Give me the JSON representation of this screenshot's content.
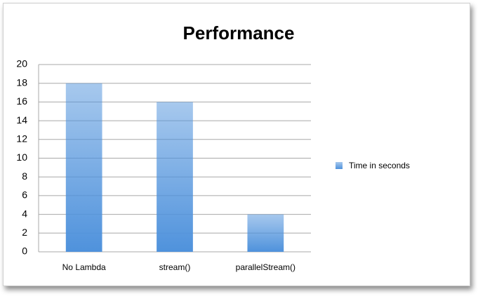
{
  "chart_data": {
    "type": "bar",
    "title": "Performance",
    "categories": [
      "No Lambda",
      "stream()",
      "parallelStream()"
    ],
    "series": [
      {
        "name": "Time in seconds",
        "color": "#4f92dc",
        "values": [
          18,
          16,
          4
        ]
      }
    ],
    "ylim": [
      0,
      20
    ],
    "yticks": [
      0,
      2,
      4,
      6,
      8,
      10,
      12,
      14,
      16,
      18,
      20
    ],
    "grid": true,
    "legend": "right"
  }
}
